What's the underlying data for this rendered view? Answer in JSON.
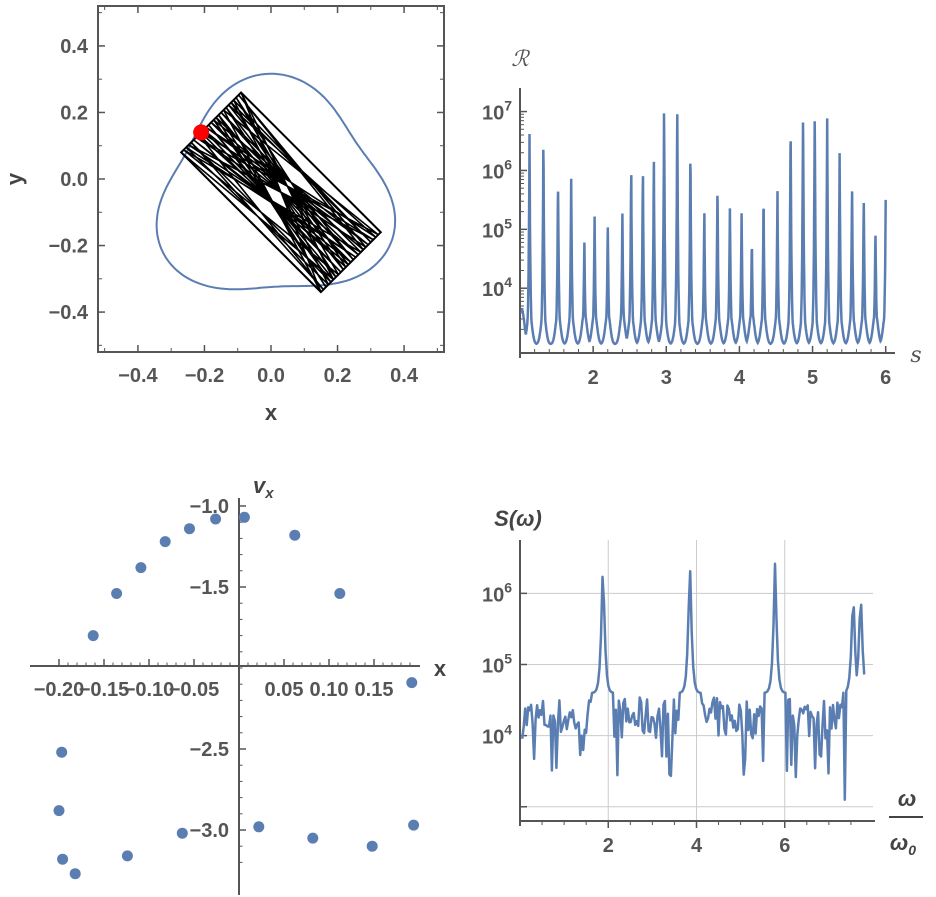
{
  "colors": {
    "series": "#5b7eb2",
    "orbit": "#000000",
    "marker": "#ff0000",
    "axis": "#555555",
    "frame": "#555555",
    "grid": "#cccccc"
  },
  "chart_data": [
    {
      "type": "line",
      "id": "trajectory",
      "title": "",
      "xlabel": "x",
      "ylabel": "y",
      "xlim": [
        -0.52,
        0.52
      ],
      "ylim": [
        -0.52,
        0.52
      ],
      "x_ticks": [
        -0.4,
        -0.2,
        0.0,
        0.2,
        0.4
      ],
      "x_tick_labels": [
        "−0.4",
        "−0.2",
        "0.0",
        "0.2",
        "0.4"
      ],
      "y_ticks": [
        0.4,
        0.2,
        0.0,
        -0.2,
        -0.4
      ],
      "y_tick_labels": [
        "0.4",
        "0.2",
        "0.0",
        "−0.2",
        "−0.4"
      ],
      "boundary_curve": {
        "name": "boundary",
        "shape": "rounded triangle",
        "x_range": [
          -0.33,
          0.35
        ],
        "y_range": [
          -0.36,
          0.29
        ]
      },
      "orbit_corners": [
        [
          -0.27,
          0.08
        ],
        [
          -0.09,
          0.26
        ],
        [
          0.33,
          -0.16
        ],
        [
          0.15,
          -0.34
        ]
      ],
      "marker": {
        "name": "start point",
        "x": -0.21,
        "y": 0.14
      }
    },
    {
      "type": "line",
      "id": "reflection-log",
      "title": "",
      "ylabel": "ℛ",
      "xlabel": "s",
      "xlim": [
        1.0,
        6.1
      ],
      "x_ticks": [
        2,
        3,
        4,
        5,
        6
      ],
      "x_tick_labels": [
        "2",
        "3",
        "4",
        "5",
        "6"
      ],
      "y_scale": "log",
      "y_log_range": [
        2.9,
        7.4
      ],
      "y_ticks": [
        {
          "base": "10",
          "exp": "7",
          "log": 7
        },
        {
          "base": "10",
          "exp": "6",
          "log": 6
        },
        {
          "base": "10",
          "exp": "5",
          "log": 5
        },
        {
          "base": "10",
          "exp": "4",
          "log": 4
        }
      ],
      "peaks": [
        {
          "s": 1.03,
          "log": 3.7
        },
        {
          "s": 1.13,
          "log": 6.7
        },
        {
          "s": 1.32,
          "log": 6.7
        },
        {
          "s": 1.52,
          "log": 6.0
        },
        {
          "s": 1.7,
          "log": 6.0
        },
        {
          "s": 1.88,
          "log": 4.9
        },
        {
          "s": 2.02,
          "log": 5.3
        },
        {
          "s": 2.2,
          "log": 5.2
        },
        {
          "s": 2.4,
          "log": 5.3
        },
        {
          "s": 2.52,
          "log": 6.2
        },
        {
          "s": 2.68,
          "log": 6.2
        },
        {
          "s": 2.83,
          "log": 6.3
        },
        {
          "s": 2.97,
          "log": 7.2
        },
        {
          "s": 3.15,
          "log": 7.2
        },
        {
          "s": 3.33,
          "log": 6.5
        },
        {
          "s": 3.52,
          "log": 5.4
        },
        {
          "s": 3.7,
          "log": 5.9
        },
        {
          "s": 3.87,
          "log": 5.5
        },
        {
          "s": 4.03,
          "log": 5.4
        },
        {
          "s": 4.17,
          "log": 4.9
        },
        {
          "s": 4.33,
          "log": 5.7
        },
        {
          "s": 4.52,
          "log": 5.7
        },
        {
          "s": 4.7,
          "log": 7.0
        },
        {
          "s": 4.87,
          "log": 7.2
        },
        {
          "s": 5.03,
          "log": 7.2
        },
        {
          "s": 5.2,
          "log": 7.0
        },
        {
          "s": 5.37,
          "log": 6.4
        },
        {
          "s": 5.54,
          "log": 5.9
        },
        {
          "s": 5.7,
          "log": 5.7
        },
        {
          "s": 5.86,
          "log": 5.1
        },
        {
          "s": 6.0,
          "log": 5.5
        }
      ],
      "baseline_log": 3.05
    },
    {
      "type": "scatter",
      "id": "poincare-section",
      "title": "",
      "xlabel": "x",
      "ylabel": "v",
      "ylabel_sub": "x",
      "xlim": [
        -0.215,
        0.19
      ],
      "ylim": [
        -3.38,
        -0.97
      ],
      "x_tick_labels_text": "−0.2−0.15−0.10−0.05  0.050.100.15",
      "x_tick_labels": [
        "−0.20",
        "−0.15",
        "−0.10",
        "−0.05",
        "0.05",
        "0.10",
        "0.15"
      ],
      "x_ticks": [
        -0.2,
        -0.15,
        -0.1,
        -0.05,
        0.05,
        0.1,
        0.15
      ],
      "y_ticks": [
        -1.0,
        -1.5,
        -2.5,
        -3.0
      ],
      "y_tick_labels": [
        "−1.0",
        "−1.5",
        "−2.5",
        "−3.0"
      ],
      "points": [
        [
          -0.162,
          -1.8
        ],
        [
          -0.136,
          -1.54
        ],
        [
          -0.109,
          -1.38
        ],
        [
          -0.082,
          -1.22
        ],
        [
          -0.055,
          -1.14
        ],
        [
          -0.026,
          -1.08
        ],
        [
          0.006,
          -1.07
        ],
        [
          0.062,
          -1.18
        ],
        [
          0.112,
          -1.54
        ],
        [
          0.192,
          -2.09
        ],
        [
          -0.197,
          -2.52
        ],
        [
          -0.2,
          -2.88
        ],
        [
          -0.196,
          -3.18
        ],
        [
          -0.182,
          -3.27
        ],
        [
          -0.124,
          -3.16
        ],
        [
          -0.063,
          -3.02
        ],
        [
          0.022,
          -2.98
        ],
        [
          0.082,
          -3.05
        ],
        [
          0.148,
          -3.1
        ],
        [
          0.194,
          -2.97
        ]
      ]
    },
    {
      "type": "line",
      "id": "power-spectrum",
      "title": "",
      "ylabel": "S(ω)",
      "xlabel_num": "ω",
      "xlabel_den": "ω",
      "xlabel_den_sub": "0",
      "xlim": [
        0,
        8.0
      ],
      "x_ticks": [
        2,
        4,
        6
      ],
      "x_tick_labels": [
        "2",
        "4",
        "6"
      ],
      "y_scale": "log",
      "y_log_range": [
        2.8,
        6.75
      ],
      "y_ticks": [
        {
          "base": "10",
          "exp": "6",
          "log": 6
        },
        {
          "base": "10",
          "exp": "5",
          "log": 5
        },
        {
          "base": "10",
          "exp": "4",
          "log": 4
        }
      ],
      "peaks": [
        {
          "w": 1.88,
          "log": 6.5
        },
        {
          "w": 3.85,
          "log": 6.5
        },
        {
          "w": 5.78,
          "log": 6.45
        },
        {
          "w": 7.55,
          "log": 6.1
        },
        {
          "w": 7.72,
          "log": 6.1
        }
      ],
      "dips": [
        {
          "w": 7.35,
          "log": 3.1
        }
      ],
      "noise_log_range": [
        3.5,
        4.8
      ]
    }
  ]
}
